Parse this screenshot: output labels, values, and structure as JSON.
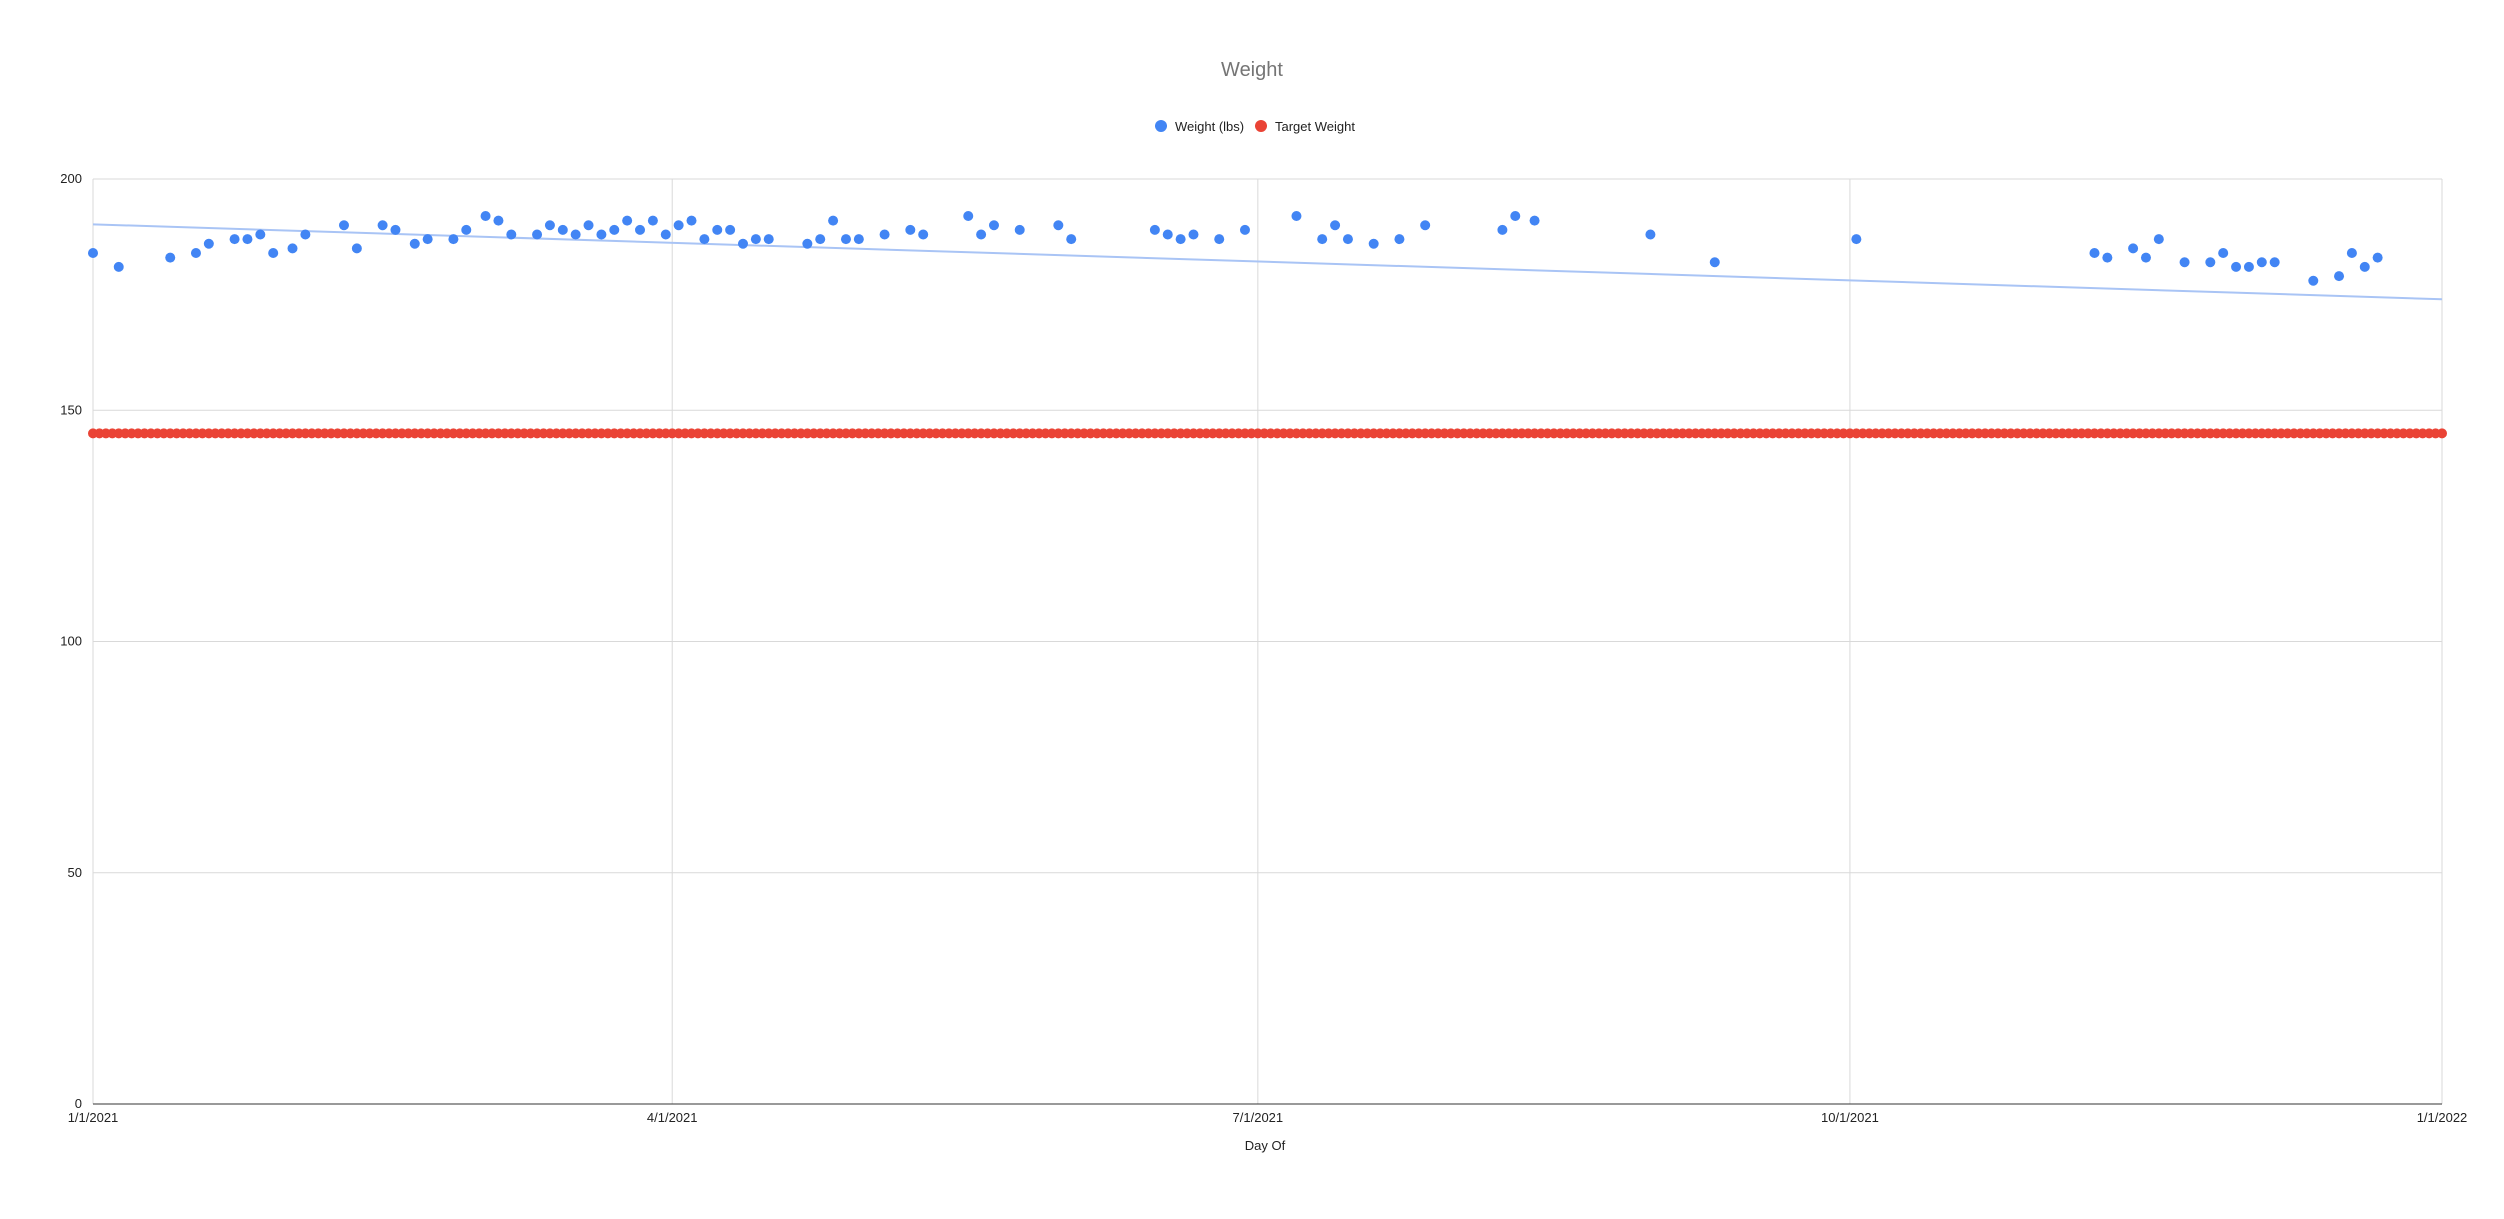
{
  "chart_data": {
    "type": "scatter",
    "title": "Weight",
    "xlabel": "Day Of",
    "ylabel": "",
    "xlim": [
      "2021-01-01",
      "2022-01-01"
    ],
    "ylim": [
      0,
      200
    ],
    "x_ticks": [
      "1/1/2021",
      "4/1/2021",
      "7/1/2021",
      "10/1/2021",
      "1/1/2022"
    ],
    "y_ticks": [
      "0",
      "50",
      "100",
      "150",
      "200"
    ],
    "grid": true,
    "legend_position": "top",
    "series": [
      {
        "name": "Weight (lbs)",
        "color": "#4285f4",
        "trendline": {
          "type": "linear",
          "color": "#a9c4f5",
          "start": [
            "2021-01-01",
            190.2
          ],
          "end": [
            "2022-01-01",
            174.0
          ]
        },
        "points": [
          [
            "2021-01-01",
            184
          ],
          [
            "2021-01-05",
            181
          ],
          [
            "2021-01-13",
            183
          ],
          [
            "2021-01-17",
            184
          ],
          [
            "2021-01-19",
            186
          ],
          [
            "2021-01-23",
            187
          ],
          [
            "2021-01-25",
            187
          ],
          [
            "2021-01-27",
            188
          ],
          [
            "2021-01-29",
            184
          ],
          [
            "2021-02-01",
            185
          ],
          [
            "2021-02-03",
            188
          ],
          [
            "2021-02-09",
            190
          ],
          [
            "2021-02-11",
            185
          ],
          [
            "2021-02-15",
            190
          ],
          [
            "2021-02-17",
            189
          ],
          [
            "2021-02-20",
            186
          ],
          [
            "2021-02-22",
            187
          ],
          [
            "2021-02-26",
            187
          ],
          [
            "2021-02-28",
            189
          ],
          [
            "2021-03-03",
            192
          ],
          [
            "2021-03-05",
            191
          ],
          [
            "2021-03-07",
            188
          ],
          [
            "2021-03-11",
            188
          ],
          [
            "2021-03-13",
            190
          ],
          [
            "2021-03-15",
            189
          ],
          [
            "2021-03-17",
            188
          ],
          [
            "2021-03-19",
            190
          ],
          [
            "2021-03-21",
            188
          ],
          [
            "2021-03-23",
            189
          ],
          [
            "2021-03-25",
            191
          ],
          [
            "2021-03-27",
            189
          ],
          [
            "2021-03-29",
            191
          ],
          [
            "2021-03-31",
            188
          ],
          [
            "2021-04-02",
            190
          ],
          [
            "2021-04-04",
            191
          ],
          [
            "2021-04-06",
            187
          ],
          [
            "2021-04-08",
            189
          ],
          [
            "2021-04-10",
            189
          ],
          [
            "2021-04-12",
            186
          ],
          [
            "2021-04-14",
            187
          ],
          [
            "2021-04-16",
            187
          ],
          [
            "2021-04-22",
            186
          ],
          [
            "2021-04-24",
            187
          ],
          [
            "2021-04-26",
            191
          ],
          [
            "2021-04-28",
            187
          ],
          [
            "2021-04-30",
            187
          ],
          [
            "2021-05-04",
            188
          ],
          [
            "2021-05-08",
            189
          ],
          [
            "2021-05-10",
            188
          ],
          [
            "2021-05-17",
            192
          ],
          [
            "2021-05-19",
            188
          ],
          [
            "2021-05-21",
            190
          ],
          [
            "2021-05-25",
            189
          ],
          [
            "2021-05-31",
            190
          ],
          [
            "2021-06-02",
            187
          ],
          [
            "2021-06-15",
            189
          ],
          [
            "2021-06-17",
            188
          ],
          [
            "2021-06-19",
            187
          ],
          [
            "2021-06-21",
            188
          ],
          [
            "2021-06-25",
            187
          ],
          [
            "2021-06-29",
            189
          ],
          [
            "2021-07-07",
            192
          ],
          [
            "2021-07-11",
            187
          ],
          [
            "2021-07-13",
            190
          ],
          [
            "2021-07-15",
            187
          ],
          [
            "2021-07-19",
            186
          ],
          [
            "2021-07-23",
            187
          ],
          [
            "2021-07-27",
            190
          ],
          [
            "2021-08-08",
            189
          ],
          [
            "2021-08-10",
            192
          ],
          [
            "2021-08-13",
            191
          ],
          [
            "2021-08-31",
            188
          ],
          [
            "2021-09-10",
            182
          ],
          [
            "2021-10-02",
            187
          ],
          [
            "2021-11-08",
            184
          ],
          [
            "2021-11-10",
            183
          ],
          [
            "2021-11-14",
            185
          ],
          [
            "2021-11-16",
            183
          ],
          [
            "2021-11-18",
            187
          ],
          [
            "2021-11-22",
            182
          ],
          [
            "2021-11-26",
            182
          ],
          [
            "2021-11-28",
            184
          ],
          [
            "2021-11-30",
            181
          ],
          [
            "2021-12-02",
            181
          ],
          [
            "2021-12-04",
            182
          ],
          [
            "2021-12-06",
            182
          ],
          [
            "2021-12-12",
            178
          ],
          [
            "2021-12-16",
            179
          ],
          [
            "2021-12-18",
            184
          ],
          [
            "2021-12-20",
            181
          ],
          [
            "2021-12-22",
            183
          ]
        ]
      },
      {
        "name": "Target Weight",
        "color": "#ea4335",
        "constant_value": 145,
        "range": [
          "2021-01-01",
          "2022-01-01"
        ],
        "interval_days": 1
      }
    ]
  }
}
